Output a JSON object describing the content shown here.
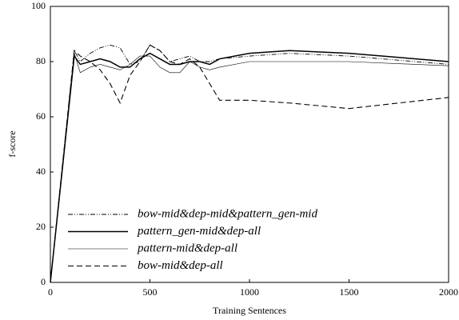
{
  "chart_data": {
    "type": "line",
    "xlabel": "Training Sentences",
    "ylabel": "f-score",
    "x": [
      0,
      120,
      150,
      200,
      250,
      300,
      350,
      400,
      450,
      500,
      550,
      600,
      650,
      700,
      750,
      800,
      850,
      1000,
      1200,
      1500,
      2000
    ],
    "series": [
      {
        "name": "bow-mid&dep-mid&pattern_gen-mid",
        "color": "#000000",
        "dash": "6,2,1,2,1,2",
        "width": 0.9,
        "values": [
          0,
          84,
          80,
          83,
          85,
          86,
          85,
          79,
          80,
          86,
          84,
          80,
          81,
          82,
          80,
          80,
          81,
          82,
          83,
          82,
          79
        ]
      },
      {
        "name": "pattern_gen-mid&dep-all",
        "color": "#000000",
        "dash": "",
        "width": 1.5,
        "values": [
          0,
          82,
          79,
          80,
          81,
          80,
          78,
          78,
          81,
          83,
          81,
          79,
          79,
          80,
          80,
          79,
          81,
          83,
          84,
          83,
          80
        ]
      },
      {
        "name": "pattern-mid&dep-all",
        "color": "#000000",
        "dash": "",
        "width": 0.6,
        "values": [
          0,
          83,
          76,
          78,
          79,
          78,
          77,
          79,
          82,
          82,
          78,
          76,
          76,
          80,
          78,
          77,
          78,
          80,
          80,
          80,
          78.5
        ]
      },
      {
        "name": "bow-mid&dep-all",
        "color": "#000000",
        "dash": "7,4",
        "width": 1.1,
        "values": [
          0,
          84,
          82,
          80,
          77,
          72,
          65,
          75,
          80,
          86,
          84,
          80,
          79,
          81,
          78,
          72,
          66,
          66,
          65,
          63,
          67
        ]
      }
    ],
    "xlim": [
      0,
      2000
    ],
    "xticks": [
      0,
      500,
      1000,
      1500,
      2000
    ],
    "ylim": [
      0,
      100
    ],
    "yticks": [
      0,
      20,
      40,
      60,
      80,
      100
    ],
    "legend": "lower left"
  }
}
